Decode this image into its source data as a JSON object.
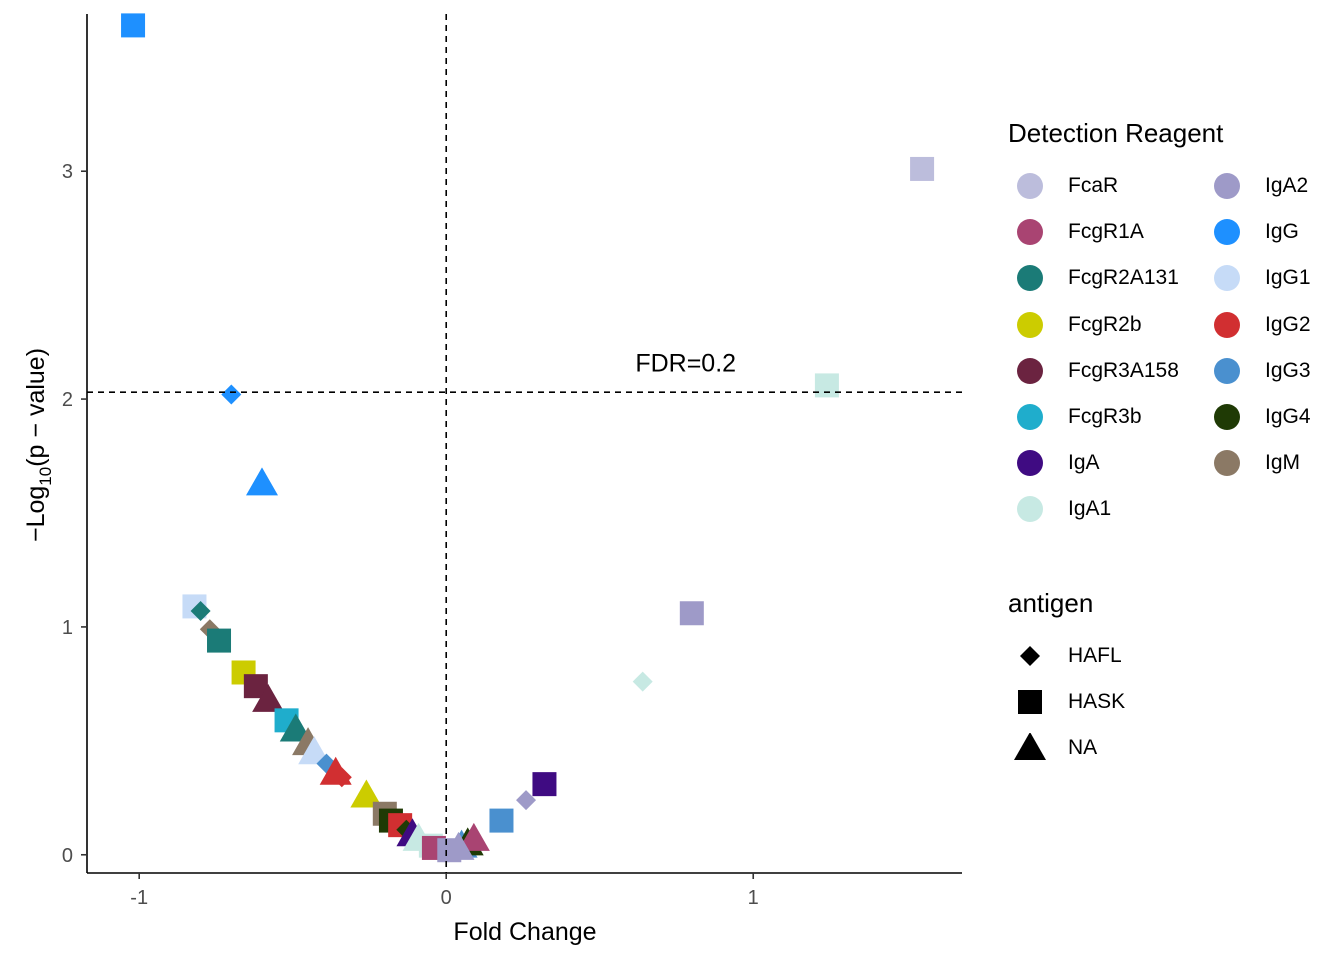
{
  "chart_data": {
    "type": "scatter",
    "xlabel": "Fold Change",
    "ylabel": "-Log10(p - value)",
    "xlim": [
      -1.17,
      1.68
    ],
    "ylim": [
      -0.08,
      3.69
    ],
    "x_ticks": [
      -1,
      0,
      1
    ],
    "x_tick_labels": [
      "-1",
      "0",
      "1"
    ],
    "y_ticks": [
      0,
      1,
      2,
      3
    ],
    "y_tick_labels": [
      "0",
      "1",
      "2",
      "3"
    ],
    "grid": false,
    "reference_lines": {
      "x": 0,
      "y": 2.03
    },
    "annotation": {
      "text": "FDR=0.2",
      "x": 0.78,
      "y": 2.16
    },
    "legend_position": "right",
    "color_legend": {
      "title": "Detection Reagent",
      "items": [
        {
          "label": "FcaR",
          "color": "#BCBDDC"
        },
        {
          "label": "FcgR1A",
          "color": "#A94472"
        },
        {
          "label": "FcgR2A131",
          "color": "#1B7B77"
        },
        {
          "label": "FcgR2b",
          "color": "#CCCC00"
        },
        {
          "label": "FcgR3A158",
          "color": "#6B2340"
        },
        {
          "label": "FcgR3b",
          "color": "#1FADCC"
        },
        {
          "label": "IgA",
          "color": "#3F0B82"
        },
        {
          "label": "IgA1",
          "color": "#C7E9E3"
        },
        {
          "label": "IgA2",
          "color": "#9E9AC8"
        },
        {
          "label": "IgG",
          "color": "#1E90FF"
        },
        {
          "label": "IgG1",
          "color": "#C6DBF7"
        },
        {
          "label": "IgG2",
          "color": "#D12F31"
        },
        {
          "label": "IgG3",
          "color": "#4A90CF"
        },
        {
          "label": "IgG4",
          "color": "#1F3A05"
        },
        {
          "label": "IgM",
          "color": "#8B7965"
        }
      ]
    },
    "shape_legend": {
      "title": "antigen",
      "items": [
        {
          "label": "HAFL",
          "shape": "diamond"
        },
        {
          "label": "HASK",
          "shape": "square"
        },
        {
          "label": "NA",
          "shape": "triangle"
        }
      ]
    },
    "points": [
      {
        "x": -1.02,
        "y": 3.64,
        "reagent": "IgG",
        "antigen": "HASK"
      },
      {
        "x": 1.55,
        "y": 3.01,
        "reagent": "FcaR",
        "antigen": "HASK"
      },
      {
        "x": 1.24,
        "y": 2.06,
        "reagent": "IgA1",
        "antigen": "HASK"
      },
      {
        "x": -0.7,
        "y": 2.02,
        "reagent": "IgG",
        "antigen": "HAFL"
      },
      {
        "x": -0.6,
        "y": 1.63,
        "reagent": "IgG",
        "antigen": "NA"
      },
      {
        "x": 0.8,
        "y": 1.06,
        "reagent": "IgA2",
        "antigen": "HASK"
      },
      {
        "x": -0.82,
        "y": 1.09,
        "reagent": "IgG1",
        "antigen": "HASK"
      },
      {
        "x": -0.8,
        "y": 1.07,
        "reagent": "FcgR2A131",
        "antigen": "HAFL"
      },
      {
        "x": -0.77,
        "y": 0.99,
        "reagent": "IgM",
        "antigen": "HAFL"
      },
      {
        "x": -0.74,
        "y": 0.94,
        "reagent": "FcgR2A131",
        "antigen": "HASK"
      },
      {
        "x": 0.64,
        "y": 0.76,
        "reagent": "IgA1",
        "antigen": "HAFL"
      },
      {
        "x": -0.66,
        "y": 0.8,
        "reagent": "FcgR2b",
        "antigen": "HASK"
      },
      {
        "x": -0.62,
        "y": 0.74,
        "reagent": "FcgR3A158",
        "antigen": "HASK"
      },
      {
        "x": -0.58,
        "y": 0.68,
        "reagent": "FcgR3A158",
        "antigen": "NA"
      },
      {
        "x": -0.52,
        "y": 0.59,
        "reagent": "FcgR3b",
        "antigen": "HASK"
      },
      {
        "x": -0.49,
        "y": 0.55,
        "reagent": "FcgR2A131",
        "antigen": "NA"
      },
      {
        "x": -0.45,
        "y": 0.49,
        "reagent": "IgM",
        "antigen": "NA"
      },
      {
        "x": -0.43,
        "y": 0.45,
        "reagent": "IgG1",
        "antigen": "NA"
      },
      {
        "x": -0.39,
        "y": 0.4,
        "reagent": "IgG3",
        "antigen": "HAFL"
      },
      {
        "x": -0.36,
        "y": 0.36,
        "reagent": "IgG2",
        "antigen": "NA"
      },
      {
        "x": -0.34,
        "y": 0.34,
        "reagent": "IgG2",
        "antigen": "HAFL"
      },
      {
        "x": 0.32,
        "y": 0.31,
        "reagent": "IgA",
        "antigen": "HASK"
      },
      {
        "x": -0.26,
        "y": 0.26,
        "reagent": "FcgR2b",
        "antigen": "NA"
      },
      {
        "x": 0.26,
        "y": 0.24,
        "reagent": "IgA2",
        "antigen": "HAFL"
      },
      {
        "x": -0.2,
        "y": 0.18,
        "reagent": "IgM",
        "antigen": "HASK"
      },
      {
        "x": -0.18,
        "y": 0.15,
        "reagent": "IgG4",
        "antigen": "HASK"
      },
      {
        "x": 0.18,
        "y": 0.15,
        "reagent": "IgG3",
        "antigen": "HASK"
      },
      {
        "x": -0.15,
        "y": 0.13,
        "reagent": "IgG2",
        "antigen": "HASK"
      },
      {
        "x": -0.13,
        "y": 0.11,
        "reagent": "IgG4",
        "antigen": "HAFL"
      },
      {
        "x": -0.11,
        "y": 0.09,
        "reagent": "IgA",
        "antigen": "NA"
      },
      {
        "x": -0.09,
        "y": 0.07,
        "reagent": "IgA1",
        "antigen": "NA"
      },
      {
        "x": -0.05,
        "y": 0.04,
        "reagent": "IgA1",
        "antigen": "HASK"
      },
      {
        "x": -0.04,
        "y": 0.03,
        "reagent": "FcgR1A",
        "antigen": "HASK"
      },
      {
        "x": 0.01,
        "y": 0.02,
        "reagent": "IgA2",
        "antigen": "HASK"
      },
      {
        "x": 0.05,
        "y": 0.04,
        "reagent": "IgG3",
        "antigen": "NA"
      },
      {
        "x": 0.07,
        "y": 0.05,
        "reagent": "IgG4",
        "antigen": "NA"
      },
      {
        "x": 0.09,
        "y": 0.07,
        "reagent": "FcgR1A",
        "antigen": "NA"
      },
      {
        "x": 0.04,
        "y": 0.03,
        "reagent": "IgA2",
        "antigen": "NA"
      }
    ]
  }
}
